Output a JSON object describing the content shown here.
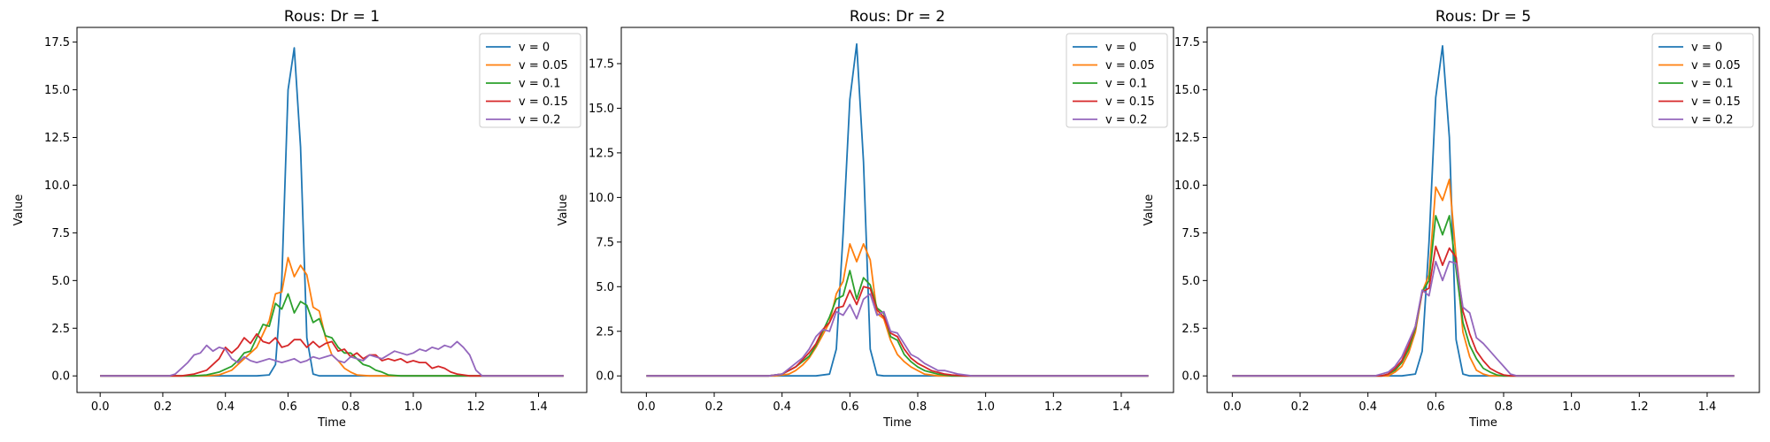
{
  "colors": [
    "#1f77b4",
    "#ff7f0e",
    "#2ca02c",
    "#d62728",
    "#9467bd"
  ],
  "chart_data": [
    {
      "type": "line",
      "title": "Rous: Dr = 1",
      "xlabel": "Time",
      "ylabel": "Value",
      "xlim": [
        -0.074,
        1.554
      ],
      "ylim": [
        -0.87,
        18.27
      ],
      "xticks": [
        0.0,
        0.2,
        0.4,
        0.6,
        0.8,
        1.0,
        1.2,
        1.4
      ],
      "xtick_labels": [
        "0.0",
        "0.2",
        "0.4",
        "0.6",
        "0.8",
        "1.0",
        "1.2",
        "1.4"
      ],
      "yticks": [
        0.0,
        2.5,
        5.0,
        7.5,
        10.0,
        12.5,
        15.0,
        17.5
      ],
      "ytick_labels": [
        "0.0",
        "2.5",
        "5.0",
        "7.5",
        "10.0",
        "12.5",
        "15.0",
        "17.5"
      ],
      "grid": false,
      "legend": "top-right",
      "series": [
        {
          "name": "v = 0",
          "x": [
            0,
            0.5,
            0.54,
            0.56,
            0.58,
            0.6,
            0.62,
            0.64,
            0.66,
            0.68,
            0.7,
            1.48
          ],
          "y": [
            0,
            0,
            0.05,
            0.6,
            5.0,
            15.0,
            17.2,
            12.0,
            2.0,
            0.1,
            0,
            0
          ]
        },
        {
          "name": "v = 0.05",
          "x": [
            0,
            0.34,
            0.38,
            0.42,
            0.46,
            0.5,
            0.52,
            0.54,
            0.56,
            0.58,
            0.6,
            0.62,
            0.64,
            0.66,
            0.68,
            0.7,
            0.72,
            0.74,
            0.76,
            0.78,
            0.8,
            0.82,
            0.86,
            1.48
          ],
          "y": [
            0,
            0,
            0.05,
            0.3,
            0.9,
            1.5,
            2.2,
            2.9,
            4.3,
            4.4,
            6.2,
            5.2,
            5.8,
            5.3,
            3.6,
            3.4,
            2.0,
            1.1,
            0.8,
            0.4,
            0.2,
            0.05,
            0,
            0
          ]
        },
        {
          "name": "v = 0.1",
          "x": [
            0,
            0.3,
            0.34,
            0.38,
            0.42,
            0.44,
            0.46,
            0.48,
            0.5,
            0.52,
            0.54,
            0.56,
            0.58,
            0.6,
            0.62,
            0.64,
            0.66,
            0.68,
            0.7,
            0.72,
            0.74,
            0.76,
            0.78,
            0.8,
            0.82,
            0.84,
            0.86,
            0.88,
            0.9,
            0.92,
            0.96,
            1.48
          ],
          "y": [
            0,
            0,
            0.05,
            0.2,
            0.5,
            0.8,
            1.2,
            1.3,
            2.0,
            2.7,
            2.6,
            3.8,
            3.5,
            4.3,
            3.3,
            3.9,
            3.7,
            2.8,
            3.0,
            2.1,
            2.0,
            1.5,
            1.2,
            1.2,
            0.9,
            0.6,
            0.5,
            0.3,
            0.2,
            0.05,
            0,
            0
          ]
        },
        {
          "name": "v = 0.15",
          "x": [
            0,
            0.26,
            0.3,
            0.34,
            0.36,
            0.38,
            0.4,
            0.42,
            0.44,
            0.46,
            0.48,
            0.5,
            0.52,
            0.54,
            0.56,
            0.58,
            0.6,
            0.62,
            0.64,
            0.66,
            0.68,
            0.7,
            0.72,
            0.74,
            0.76,
            0.78,
            0.8,
            0.82,
            0.84,
            0.86,
            0.88,
            0.9,
            0.92,
            0.94,
            0.96,
            0.98,
            1.0,
            1.02,
            1.04,
            1.06,
            1.08,
            1.1,
            1.12,
            1.14,
            1.16,
            1.18,
            1.2,
            1.48
          ],
          "y": [
            0,
            0,
            0.1,
            0.3,
            0.6,
            0.9,
            1.5,
            1.2,
            1.5,
            2.0,
            1.7,
            2.2,
            1.8,
            1.7,
            2.0,
            1.5,
            1.6,
            1.9,
            1.9,
            1.5,
            1.8,
            1.5,
            1.7,
            1.8,
            1.3,
            1.4,
            1.0,
            1.2,
            0.9,
            1.1,
            1.1,
            0.8,
            0.9,
            0.8,
            0.9,
            0.7,
            0.8,
            0.7,
            0.7,
            0.4,
            0.5,
            0.4,
            0.2,
            0.1,
            0.05,
            0,
            0,
            0
          ]
        },
        {
          "name": "v = 0.2",
          "x": [
            0,
            0.22,
            0.24,
            0.26,
            0.28,
            0.3,
            0.32,
            0.34,
            0.36,
            0.38,
            0.4,
            0.42,
            0.44,
            0.46,
            0.48,
            0.5,
            0.52,
            0.54,
            0.56,
            0.58,
            0.6,
            0.62,
            0.64,
            0.66,
            0.68,
            0.7,
            0.72,
            0.74,
            0.76,
            0.78,
            0.8,
            0.82,
            0.84,
            0.86,
            0.88,
            0.9,
            0.92,
            0.94,
            0.96,
            0.98,
            1.0,
            1.02,
            1.04,
            1.06,
            1.08,
            1.1,
            1.12,
            1.14,
            1.16,
            1.18,
            1.2,
            1.22,
            1.48
          ],
          "y": [
            0,
            0,
            0.1,
            0.4,
            0.7,
            1.1,
            1.2,
            1.6,
            1.3,
            1.5,
            1.4,
            0.9,
            0.7,
            1.0,
            0.8,
            0.7,
            0.8,
            0.9,
            0.8,
            0.7,
            0.8,
            0.9,
            0.7,
            0.8,
            1.0,
            0.9,
            1.0,
            1.1,
            0.8,
            0.7,
            1.0,
            0.9,
            0.8,
            1.1,
            1.0,
            0.9,
            1.1,
            1.3,
            1.2,
            1.1,
            1.2,
            1.4,
            1.3,
            1.5,
            1.4,
            1.6,
            1.5,
            1.8,
            1.5,
            1.1,
            0.3,
            0,
            0
          ]
        }
      ]
    },
    {
      "type": "line",
      "title": "Rous: Dr = 2",
      "xlabel": "Time",
      "ylabel": "Value",
      "xlim": [
        -0.074,
        1.554
      ],
      "ylim": [
        -0.93,
        19.53
      ],
      "xticks": [
        0.0,
        0.2,
        0.4,
        0.6,
        0.8,
        1.0,
        1.2,
        1.4
      ],
      "xtick_labels": [
        "0.0",
        "0.2",
        "0.4",
        "0.6",
        "0.8",
        "1.0",
        "1.2",
        "1.4"
      ],
      "yticks": [
        0.0,
        2.5,
        5.0,
        7.5,
        10.0,
        12.5,
        15.0,
        17.5
      ],
      "ytick_labels": [
        "0.0",
        "2.5",
        "5.0",
        "7.5",
        "10.0",
        "12.5",
        "15.0",
        "17.5"
      ],
      "grid": false,
      "legend": "top-right",
      "series": [
        {
          "name": "v = 0",
          "x": [
            0,
            0.5,
            0.54,
            0.56,
            0.58,
            0.6,
            0.62,
            0.64,
            0.66,
            0.68,
            0.7,
            1.48
          ],
          "y": [
            0,
            0,
            0.1,
            1.5,
            8.0,
            15.5,
            18.6,
            12.0,
            1.5,
            0.05,
            0,
            0
          ]
        },
        {
          "name": "v = 0.05",
          "x": [
            0,
            0.38,
            0.42,
            0.44,
            0.46,
            0.48,
            0.5,
            0.52,
            0.54,
            0.56,
            0.58,
            0.6,
            0.62,
            0.64,
            0.66,
            0.68,
            0.7,
            0.72,
            0.74,
            0.76,
            0.78,
            0.8,
            0.82,
            0.86,
            1.48
          ],
          "y": [
            0,
            0,
            0.1,
            0.3,
            0.6,
            1.0,
            1.6,
            2.3,
            3.0,
            4.6,
            5.3,
            7.4,
            6.4,
            7.4,
            6.5,
            3.5,
            3.2,
            2.0,
            1.2,
            0.8,
            0.5,
            0.3,
            0.1,
            0,
            0
          ]
        },
        {
          "name": "v = 0.1",
          "x": [
            0,
            0.36,
            0.4,
            0.42,
            0.44,
            0.46,
            0.48,
            0.5,
            0.52,
            0.54,
            0.56,
            0.58,
            0.6,
            0.62,
            0.64,
            0.66,
            0.68,
            0.7,
            0.72,
            0.74,
            0.76,
            0.78,
            0.8,
            0.82,
            0.84,
            0.86,
            0.9,
            1.48
          ],
          "y": [
            0,
            0,
            0.1,
            0.3,
            0.5,
            0.8,
            1.1,
            1.7,
            2.5,
            3.3,
            4.3,
            4.5,
            5.9,
            4.3,
            5.5,
            5.1,
            3.8,
            3.5,
            2.2,
            2.0,
            1.2,
            0.8,
            0.5,
            0.3,
            0.2,
            0.1,
            0,
            0
          ]
        },
        {
          "name": "v = 0.15",
          "x": [
            0,
            0.36,
            0.4,
            0.42,
            0.44,
            0.46,
            0.48,
            0.5,
            0.52,
            0.54,
            0.56,
            0.58,
            0.6,
            0.62,
            0.64,
            0.66,
            0.68,
            0.7,
            0.72,
            0.74,
            0.76,
            0.78,
            0.8,
            0.82,
            0.84,
            0.86,
            0.88,
            0.9,
            0.94,
            1.48
          ],
          "y": [
            0,
            0,
            0.1,
            0.3,
            0.5,
            0.9,
            1.3,
            1.8,
            2.6,
            3.0,
            3.8,
            3.9,
            4.8,
            4.0,
            5.0,
            4.9,
            3.7,
            3.3,
            2.4,
            2.2,
            1.5,
            1.0,
            0.7,
            0.5,
            0.3,
            0.2,
            0.1,
            0.05,
            0,
            0
          ]
        },
        {
          "name": "v = 0.2",
          "x": [
            0,
            0.36,
            0.4,
            0.42,
            0.44,
            0.46,
            0.48,
            0.5,
            0.52,
            0.54,
            0.56,
            0.58,
            0.6,
            0.62,
            0.64,
            0.66,
            0.68,
            0.7,
            0.72,
            0.74,
            0.76,
            0.78,
            0.8,
            0.82,
            0.84,
            0.86,
            0.88,
            0.9,
            0.92,
            0.96,
            1.48
          ],
          "y": [
            0,
            0,
            0.1,
            0.4,
            0.7,
            1.0,
            1.5,
            2.2,
            2.6,
            2.5,
            3.6,
            3.4,
            4.0,
            3.2,
            4.3,
            4.6,
            3.4,
            3.6,
            2.5,
            2.4,
            1.8,
            1.2,
            1.0,
            0.7,
            0.5,
            0.3,
            0.3,
            0.2,
            0.1,
            0,
            0
          ]
        }
      ]
    },
    {
      "type": "line",
      "title": "Rous: Dr = 5",
      "xlabel": "Time",
      "ylabel": "Value",
      "xlim": [
        -0.074,
        1.554
      ],
      "ylim": [
        -0.87,
        18.27
      ],
      "xticks": [
        0.0,
        0.2,
        0.4,
        0.6,
        0.8,
        1.0,
        1.2,
        1.4
      ],
      "xtick_labels": [
        "0.0",
        "0.2",
        "0.4",
        "0.6",
        "0.8",
        "1.0",
        "1.2",
        "1.4"
      ],
      "yticks": [
        0.0,
        2.5,
        5.0,
        7.5,
        10.0,
        12.5,
        15.0,
        17.5
      ],
      "ytick_labels": [
        "0.0",
        "2.5",
        "5.0",
        "7.5",
        "10.0",
        "12.5",
        "15.0",
        "17.5"
      ],
      "grid": false,
      "legend": "top-right",
      "series": [
        {
          "name": "v = 0",
          "x": [
            0,
            0.5,
            0.54,
            0.56,
            0.58,
            0.6,
            0.62,
            0.64,
            0.66,
            0.68,
            0.7,
            1.48
          ],
          "y": [
            0,
            0,
            0.1,
            1.3,
            7.0,
            14.6,
            17.3,
            12.5,
            1.9,
            0.1,
            0,
            0
          ]
        },
        {
          "name": "v = 0.05",
          "x": [
            0,
            0.46,
            0.48,
            0.5,
            0.52,
            0.54,
            0.56,
            0.58,
            0.6,
            0.62,
            0.64,
            0.66,
            0.68,
            0.7,
            0.72,
            0.74,
            0.76,
            1.48
          ],
          "y": [
            0,
            0,
            0.2,
            0.5,
            1.2,
            2.3,
            4.4,
            5.3,
            9.9,
            9.2,
            10.3,
            6.2,
            2.3,
            1.0,
            0.3,
            0.1,
            0,
            0
          ]
        },
        {
          "name": "v = 0.1",
          "x": [
            0,
            0.44,
            0.46,
            0.48,
            0.5,
            0.52,
            0.54,
            0.56,
            0.58,
            0.6,
            0.62,
            0.64,
            0.66,
            0.68,
            0.7,
            0.72,
            0.74,
            0.76,
            0.78,
            0.8,
            1.48
          ],
          "y": [
            0,
            0,
            0.1,
            0.3,
            0.7,
            1.4,
            2.5,
            4.4,
            5.0,
            8.4,
            7.4,
            8.4,
            5.6,
            2.8,
            1.6,
            0.9,
            0.4,
            0.2,
            0.05,
            0,
            0
          ]
        },
        {
          "name": "v = 0.15",
          "x": [
            0,
            0.44,
            0.46,
            0.48,
            0.5,
            0.52,
            0.54,
            0.56,
            0.58,
            0.6,
            0.62,
            0.64,
            0.66,
            0.68,
            0.7,
            0.72,
            0.74,
            0.76,
            0.78,
            0.8,
            0.82,
            1.48
          ],
          "y": [
            0,
            0,
            0.1,
            0.4,
            0.8,
            1.6,
            2.6,
            4.4,
            4.6,
            6.8,
            5.8,
            6.7,
            6.2,
            3.4,
            2.2,
            1.3,
            0.8,
            0.4,
            0.2,
            0.05,
            0,
            0
          ]
        },
        {
          "name": "v = 0.2",
          "x": [
            0,
            0.42,
            0.44,
            0.46,
            0.48,
            0.5,
            0.52,
            0.54,
            0.56,
            0.58,
            0.6,
            0.62,
            0.64,
            0.66,
            0.68,
            0.7,
            0.72,
            0.74,
            0.76,
            0.78,
            0.8,
            0.82,
            0.84,
            1.48
          ],
          "y": [
            0,
            0,
            0.1,
            0.2,
            0.5,
            1.0,
            1.8,
            2.6,
            4.5,
            4.2,
            6.0,
            5.0,
            6.0,
            5.9,
            3.6,
            3.3,
            2.0,
            1.7,
            1.3,
            0.9,
            0.5,
            0.1,
            0,
            0
          ]
        }
      ]
    }
  ]
}
